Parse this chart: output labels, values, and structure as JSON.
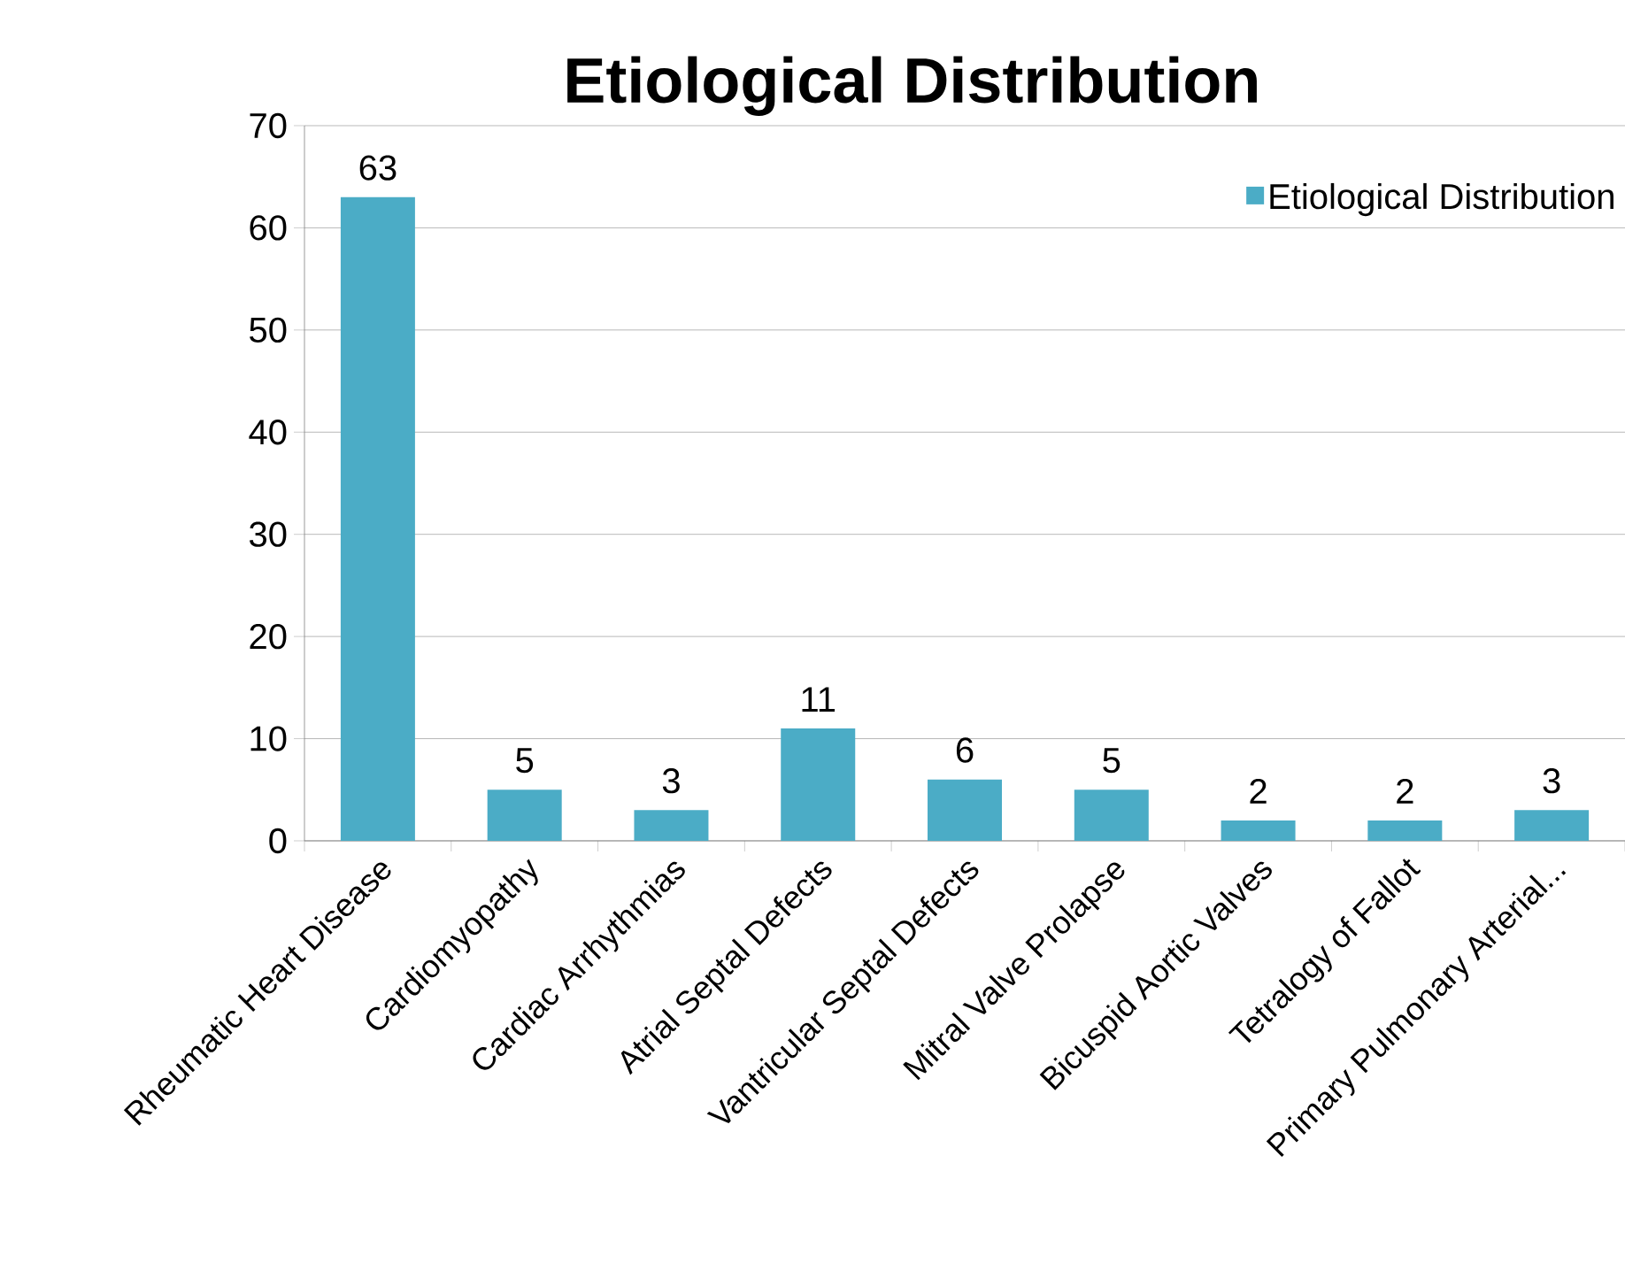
{
  "chart_data": {
    "type": "bar",
    "title": "Etiological Distribution",
    "categories": [
      "Rheumatic Heart Disease",
      "Cardiomyopathy",
      "Cardiac Arrhythmias",
      "Atrial Septal Defects",
      "Vantricular Septal Defects",
      "Mitral Valve Prolapse",
      "Bicuspid Aortic Valves",
      "Tetralogy of Fallot",
      "Primary Pulmonary Arterial..."
    ],
    "series": [
      {
        "name": "Etiological Distribution",
        "color": "#4bacc6",
        "values": [
          63,
          5,
          3,
          11,
          6,
          5,
          2,
          2,
          3
        ]
      }
    ],
    "ylim": [
      0,
      70
    ],
    "yticks": [
      0,
      10,
      20,
      30,
      40,
      50,
      60,
      70
    ],
    "grid": "y",
    "legend": "top right",
    "data_labels": true
  }
}
